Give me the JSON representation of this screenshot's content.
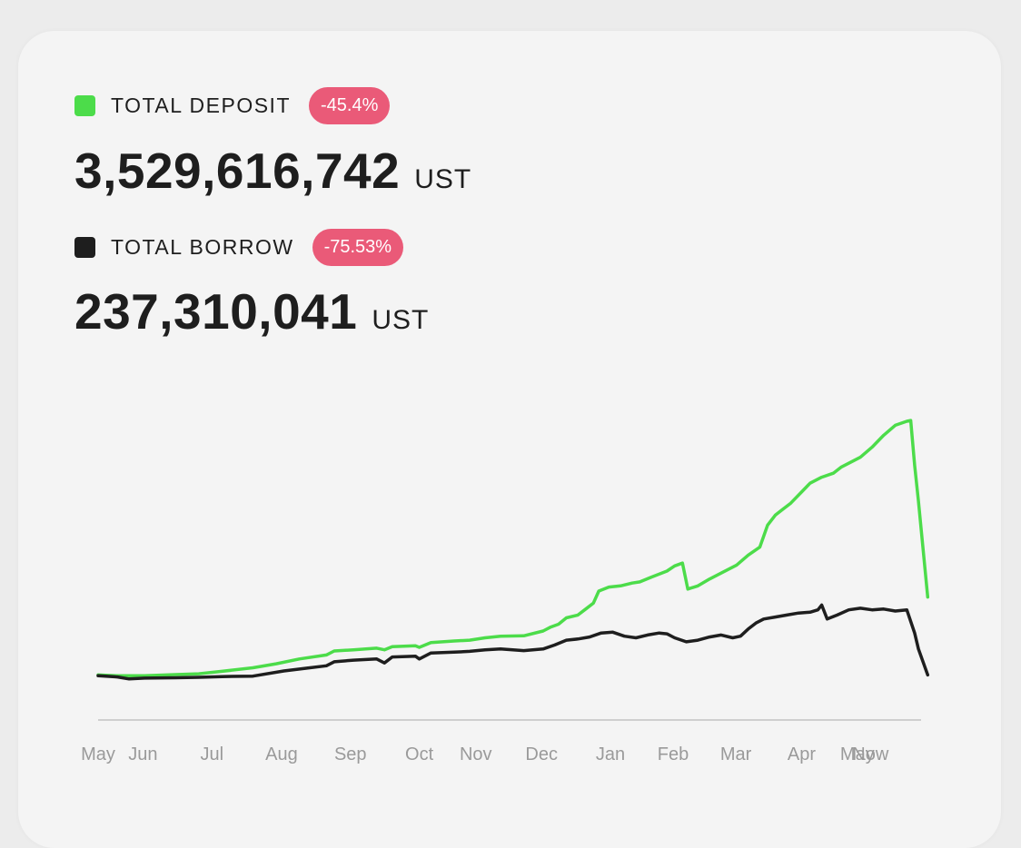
{
  "colors": {
    "deposit": "#4cdc4a",
    "borrow": "#1e1e1e",
    "badge": "#ea5a78",
    "axis": "#cfcfcf",
    "tick": "#9a9a9a"
  },
  "metrics": {
    "deposit": {
      "label": "TOTAL DEPOSIT",
      "change": "-45.4%",
      "value": "3,529,616,742",
      "unit": "UST"
    },
    "borrow": {
      "label": "TOTAL BORROW",
      "change": "-75.53%",
      "value": "237,310,041",
      "unit": "UST"
    }
  },
  "chart_data": {
    "type": "line",
    "xlabel": "",
    "ylabel": "",
    "x_labels": [
      "May",
      "Jun",
      "Jul",
      "Aug",
      "Sep",
      "Oct",
      "Nov",
      "Dec",
      "Jan",
      "Feb",
      "Mar",
      "Apr",
      "May",
      "Now"
    ],
    "x_label_positions": [
      0,
      0.58,
      1.47,
      2.37,
      3.26,
      4.15,
      4.88,
      5.73,
      6.62,
      7.43,
      8.24,
      9.09,
      9.81,
      9.98
    ],
    "ylim": [
      0,
      6.9
    ],
    "grid": false,
    "legend": "top-left",
    "series": [
      {
        "key": "deposit",
        "points": [
          [
            0,
            0.15
          ],
          [
            0.25,
            0.13
          ],
          [
            0.6,
            0.13
          ],
          [
            1.0,
            0.16
          ],
          [
            1.3,
            0.18
          ],
          [
            1.6,
            0.24
          ],
          [
            2.0,
            0.33
          ],
          [
            2.3,
            0.43
          ],
          [
            2.6,
            0.55
          ],
          [
            2.95,
            0.65
          ],
          [
            3.05,
            0.75
          ],
          [
            3.3,
            0.78
          ],
          [
            3.6,
            0.82
          ],
          [
            3.7,
            0.78
          ],
          [
            3.8,
            0.86
          ],
          [
            4.1,
            0.88
          ],
          [
            4.15,
            0.84
          ],
          [
            4.3,
            0.96
          ],
          [
            4.6,
            1.0
          ],
          [
            4.8,
            1.02
          ],
          [
            5.0,
            1.08
          ],
          [
            5.2,
            1.12
          ],
          [
            5.5,
            1.13
          ],
          [
            5.75,
            1.25
          ],
          [
            5.85,
            1.35
          ],
          [
            5.95,
            1.42
          ],
          [
            6.05,
            1.58
          ],
          [
            6.2,
            1.65
          ],
          [
            6.3,
            1.8
          ],
          [
            6.4,
            1.95
          ],
          [
            6.47,
            2.25
          ],
          [
            6.6,
            2.35
          ],
          [
            6.75,
            2.38
          ],
          [
            6.9,
            2.45
          ],
          [
            7.0,
            2.48
          ],
          [
            7.15,
            2.6
          ],
          [
            7.35,
            2.75
          ],
          [
            7.45,
            2.88
          ],
          [
            7.55,
            2.95
          ],
          [
            7.62,
            2.3
          ],
          [
            7.75,
            2.38
          ],
          [
            7.9,
            2.55
          ],
          [
            8.05,
            2.7
          ],
          [
            8.25,
            2.9
          ],
          [
            8.4,
            3.15
          ],
          [
            8.55,
            3.35
          ],
          [
            8.65,
            3.9
          ],
          [
            8.75,
            4.15
          ],
          [
            8.85,
            4.3
          ],
          [
            8.95,
            4.45
          ],
          [
            9.1,
            4.75
          ],
          [
            9.2,
            4.95
          ],
          [
            9.35,
            5.1
          ],
          [
            9.5,
            5.2
          ],
          [
            9.6,
            5.35
          ],
          [
            9.7,
            5.45
          ],
          [
            9.85,
            5.6
          ],
          [
            10.0,
            5.85
          ],
          [
            10.15,
            6.15
          ],
          [
            10.3,
            6.4
          ],
          [
            10.45,
            6.5
          ],
          [
            10.5,
            6.52
          ],
          [
            10.55,
            5.4
          ],
          [
            10.6,
            4.5
          ],
          [
            10.72,
            2.1
          ]
        ]
      },
      {
        "key": "borrow",
        "points": [
          [
            0,
            0.13
          ],
          [
            0.25,
            0.1
          ],
          [
            0.4,
            0.05
          ],
          [
            0.6,
            0.07
          ],
          [
            1.0,
            0.08
          ],
          [
            1.3,
            0.09
          ],
          [
            1.6,
            0.11
          ],
          [
            2.0,
            0.12
          ],
          [
            2.4,
            0.25
          ],
          [
            2.7,
            0.32
          ],
          [
            2.95,
            0.38
          ],
          [
            3.05,
            0.48
          ],
          [
            3.3,
            0.52
          ],
          [
            3.6,
            0.55
          ],
          [
            3.7,
            0.45
          ],
          [
            3.8,
            0.6
          ],
          [
            4.1,
            0.62
          ],
          [
            4.15,
            0.55
          ],
          [
            4.3,
            0.7
          ],
          [
            4.6,
            0.72
          ],
          [
            4.8,
            0.74
          ],
          [
            5.0,
            0.78
          ],
          [
            5.2,
            0.8
          ],
          [
            5.5,
            0.76
          ],
          [
            5.75,
            0.8
          ],
          [
            5.9,
            0.9
          ],
          [
            6.05,
            1.02
          ],
          [
            6.2,
            1.05
          ],
          [
            6.35,
            1.1
          ],
          [
            6.5,
            1.2
          ],
          [
            6.65,
            1.22
          ],
          [
            6.8,
            1.12
          ],
          [
            6.95,
            1.08
          ],
          [
            7.1,
            1.15
          ],
          [
            7.25,
            1.2
          ],
          [
            7.35,
            1.18
          ],
          [
            7.45,
            1.08
          ],
          [
            7.6,
            0.98
          ],
          [
            7.75,
            1.02
          ],
          [
            7.9,
            1.1
          ],
          [
            8.05,
            1.15
          ],
          [
            8.2,
            1.08
          ],
          [
            8.3,
            1.12
          ],
          [
            8.4,
            1.3
          ],
          [
            8.5,
            1.45
          ],
          [
            8.6,
            1.55
          ],
          [
            8.75,
            1.6
          ],
          [
            8.9,
            1.65
          ],
          [
            9.05,
            1.7
          ],
          [
            9.2,
            1.72
          ],
          [
            9.3,
            1.78
          ],
          [
            9.35,
            1.9
          ],
          [
            9.42,
            1.55
          ],
          [
            9.55,
            1.65
          ],
          [
            9.7,
            1.78
          ],
          [
            9.85,
            1.82
          ],
          [
            10.0,
            1.78
          ],
          [
            10.15,
            1.8
          ],
          [
            10.3,
            1.75
          ],
          [
            10.45,
            1.78
          ],
          [
            10.55,
            1.2
          ],
          [
            10.6,
            0.8
          ],
          [
            10.72,
            0.15
          ]
        ]
      }
    ]
  }
}
